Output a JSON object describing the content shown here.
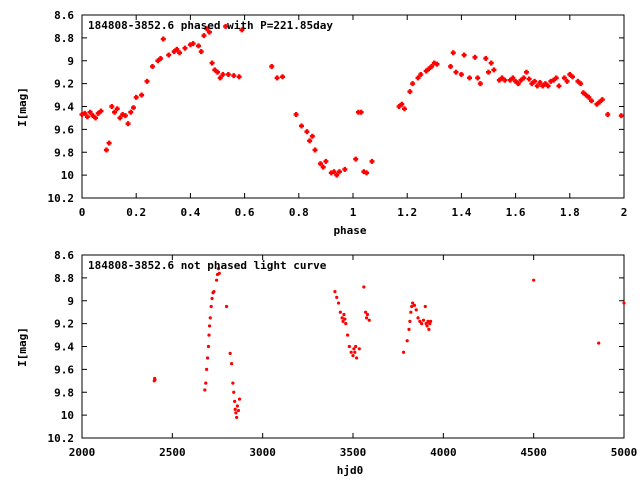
{
  "chart_data": [
    {
      "type": "scatter",
      "title": "184808-3852.6 phased with P=221.85day",
      "xlabel": "phase",
      "ylabel": "I[mag]",
      "xlim": [
        0,
        2
      ],
      "ylim": [
        10.2,
        8.6
      ],
      "y_inverted": true,
      "xticks": [
        "0",
        "0.2",
        "0.4",
        "0.6",
        "0.8",
        "1",
        "1.2",
        "1.4",
        "1.6",
        "1.8",
        "2"
      ],
      "yticks": [
        "8.6",
        "8.8",
        "9",
        "9.2",
        "9.4",
        "9.6",
        "9.8",
        "10",
        "10.2"
      ],
      "marker": "plus-cluster",
      "color": "#ff0000",
      "grid": false,
      "legend": "none",
      "series": [
        {
          "points": [
            [
              0.0,
              9.47
            ],
            [
              0.01,
              9.46
            ],
            [
              0.02,
              9.49
            ],
            [
              0.03,
              9.45
            ],
            [
              0.04,
              9.48
            ],
            [
              0.05,
              9.5
            ],
            [
              0.06,
              9.46
            ],
            [
              0.07,
              9.44
            ],
            [
              0.09,
              9.78
            ],
            [
              0.1,
              9.72
            ],
            [
              0.11,
              9.4
            ],
            [
              0.12,
              9.45
            ],
            [
              0.13,
              9.42
            ],
            [
              0.14,
              9.5
            ],
            [
              0.15,
              9.47
            ],
            [
              0.16,
              9.48
            ],
            [
              0.17,
              9.55
            ],
            [
              0.18,
              9.45
            ],
            [
              0.19,
              9.41
            ],
            [
              0.2,
              9.32
            ],
            [
              0.22,
              9.3
            ],
            [
              0.24,
              9.18
            ],
            [
              0.26,
              9.05
            ],
            [
              0.28,
              9.0
            ],
            [
              0.29,
              8.98
            ],
            [
              0.3,
              8.81
            ],
            [
              0.32,
              8.95
            ],
            [
              0.34,
              8.92
            ],
            [
              0.35,
              8.9
            ],
            [
              0.36,
              8.93
            ],
            [
              0.38,
              8.89
            ],
            [
              0.4,
              8.86
            ],
            [
              0.41,
              8.85
            ],
            [
              0.43,
              8.87
            ],
            [
              0.44,
              8.92
            ],
            [
              0.45,
              8.78
            ],
            [
              0.46,
              8.72
            ],
            [
              0.47,
              8.75
            ],
            [
              0.48,
              9.02
            ],
            [
              0.49,
              9.08
            ],
            [
              0.5,
              9.1
            ],
            [
              0.51,
              9.15
            ],
            [
              0.52,
              9.12
            ],
            [
              0.53,
              8.7
            ],
            [
              0.54,
              9.12
            ],
            [
              0.56,
              9.13
            ],
            [
              0.58,
              9.14
            ],
            [
              0.59,
              8.73
            ],
            [
              0.7,
              9.05
            ],
            [
              0.72,
              9.15
            ],
            [
              0.74,
              9.14
            ],
            [
              0.79,
              9.47
            ],
            [
              0.81,
              9.57
            ],
            [
              0.83,
              9.62
            ],
            [
              0.84,
              9.7
            ],
            [
              0.85,
              9.66
            ],
            [
              0.86,
              9.78
            ],
            [
              0.88,
              9.9
            ],
            [
              0.89,
              9.93
            ],
            [
              0.9,
              9.88
            ],
            [
              0.92,
              9.98
            ],
            [
              0.93,
              9.97
            ],
            [
              0.94,
              10.0
            ],
            [
              0.95,
              9.97
            ],
            [
              0.97,
              9.95
            ],
            [
              1.01,
              9.86
            ],
            [
              1.02,
              9.45
            ],
            [
              1.03,
              9.45
            ],
            [
              1.04,
              9.97
            ],
            [
              1.05,
              9.98
            ],
            [
              1.07,
              9.88
            ],
            [
              1.17,
              9.4
            ],
            [
              1.18,
              9.38
            ],
            [
              1.19,
              9.42
            ],
            [
              1.21,
              9.27
            ],
            [
              1.22,
              9.2
            ],
            [
              1.24,
              9.15
            ],
            [
              1.25,
              9.12
            ],
            [
              1.27,
              9.09
            ],
            [
              1.28,
              9.07
            ],
            [
              1.29,
              9.05
            ],
            [
              1.3,
              9.02
            ],
            [
              1.31,
              9.03
            ],
            [
              1.36,
              9.05
            ],
            [
              1.37,
              8.93
            ],
            [
              1.38,
              9.1
            ],
            [
              1.4,
              9.12
            ],
            [
              1.41,
              8.95
            ],
            [
              1.43,
              9.15
            ],
            [
              1.45,
              8.97
            ],
            [
              1.46,
              9.15
            ],
            [
              1.47,
              9.2
            ],
            [
              1.49,
              8.98
            ],
            [
              1.5,
              9.1
            ],
            [
              1.51,
              9.02
            ],
            [
              1.52,
              9.08
            ],
            [
              1.54,
              9.17
            ],
            [
              1.55,
              9.15
            ],
            [
              1.56,
              9.17
            ],
            [
              1.58,
              9.17
            ],
            [
              1.59,
              9.15
            ],
            [
              1.6,
              9.18
            ],
            [
              1.61,
              9.2
            ],
            [
              1.62,
              9.17
            ],
            [
              1.63,
              9.15
            ],
            [
              1.64,
              9.1
            ],
            [
              1.65,
              9.16
            ],
            [
              1.66,
              9.2
            ],
            [
              1.67,
              9.18
            ],
            [
              1.68,
              9.22
            ],
            [
              1.69,
              9.19
            ],
            [
              1.7,
              9.22
            ],
            [
              1.71,
              9.2
            ],
            [
              1.72,
              9.22
            ],
            [
              1.73,
              9.18
            ],
            [
              1.74,
              9.17
            ],
            [
              1.75,
              9.15
            ],
            [
              1.76,
              9.22
            ],
            [
              1.78,
              9.15
            ],
            [
              1.79,
              9.18
            ],
            [
              1.8,
              9.12
            ],
            [
              1.81,
              9.14
            ],
            [
              1.83,
              9.18
            ],
            [
              1.84,
              9.2
            ],
            [
              1.85,
              9.28
            ],
            [
              1.86,
              9.3
            ],
            [
              1.87,
              9.32
            ],
            [
              1.88,
              9.35
            ],
            [
              1.9,
              9.38
            ],
            [
              1.91,
              9.36
            ],
            [
              1.92,
              9.34
            ],
            [
              1.94,
              9.47
            ],
            [
              1.99,
              9.48
            ]
          ]
        }
      ]
    },
    {
      "type": "scatter",
      "title": "184808-3852.6 not phased light curve",
      "xlabel": "hjd0",
      "ylabel": "I[mag]",
      "xlim": [
        2000,
        5000
      ],
      "ylim": [
        10.2,
        8.6
      ],
      "y_inverted": true,
      "xticks": [
        "2000",
        "2500",
        "3000",
        "3500",
        "4000",
        "4500",
        "5000"
      ],
      "yticks": [
        "8.6",
        "8.8",
        "9",
        "9.2",
        "9.4",
        "9.6",
        "9.8",
        "10",
        "10.2"
      ],
      "marker": "small-dot",
      "color": "#ff0000",
      "grid": false,
      "legend": "none",
      "series": [
        {
          "points": [
            [
              2400,
              9.7
            ],
            [
              2402,
              9.68
            ],
            [
              2404,
              9.69
            ],
            [
              2680,
              9.78
            ],
            [
              2685,
              9.72
            ],
            [
              2690,
              9.6
            ],
            [
              2695,
              9.5
            ],
            [
              2700,
              9.4
            ],
            [
              2703,
              9.3
            ],
            [
              2706,
              9.22
            ],
            [
              2710,
              9.15
            ],
            [
              2715,
              9.05
            ],
            [
              2720,
              8.98
            ],
            [
              2725,
              8.93
            ],
            [
              2730,
              8.92
            ],
            [
              2745,
              8.82
            ],
            [
              2750,
              8.77
            ],
            [
              2755,
              8.72
            ],
            [
              2760,
              8.76
            ],
            [
              2800,
              9.05
            ],
            [
              2820,
              9.46
            ],
            [
              2828,
              9.55
            ],
            [
              2835,
              9.72
            ],
            [
              2840,
              9.8
            ],
            [
              2845,
              9.88
            ],
            [
              2848,
              9.95
            ],
            [
              2852,
              9.98
            ],
            [
              2856,
              10.02
            ],
            [
              2860,
              9.92
            ],
            [
              2866,
              9.96
            ],
            [
              2872,
              9.86
            ],
            [
              3400,
              8.92
            ],
            [
              3410,
              8.97
            ],
            [
              3420,
              9.02
            ],
            [
              3430,
              9.1
            ],
            [
              3440,
              9.15
            ],
            [
              3445,
              9.18
            ],
            [
              3450,
              9.12
            ],
            [
              3455,
              9.16
            ],
            [
              3460,
              9.2
            ],
            [
              3470,
              9.3
            ],
            [
              3480,
              9.4
            ],
            [
              3490,
              9.45
            ],
            [
              3500,
              9.48
            ],
            [
              3505,
              9.42
            ],
            [
              3510,
              9.45
            ],
            [
              3515,
              9.4
            ],
            [
              3520,
              9.5
            ],
            [
              3535,
              9.42
            ],
            [
              3560,
              8.88
            ],
            [
              3570,
              9.1
            ],
            [
              3575,
              9.15
            ],
            [
              3580,
              9.12
            ],
            [
              3590,
              9.17
            ],
            [
              3780,
              9.45
            ],
            [
              3800,
              9.35
            ],
            [
              3810,
              9.25
            ],
            [
              3815,
              9.18
            ],
            [
              3820,
              9.1
            ],
            [
              3825,
              9.05
            ],
            [
              3830,
              9.02
            ],
            [
              3840,
              9.04
            ],
            [
              3850,
              9.08
            ],
            [
              3860,
              9.15
            ],
            [
              3870,
              9.18
            ],
            [
              3880,
              9.2
            ],
            [
              3890,
              9.17
            ],
            [
              3900,
              9.05
            ],
            [
              3905,
              9.2
            ],
            [
              3910,
              9.22
            ],
            [
              3915,
              9.18
            ],
            [
              3920,
              9.25
            ],
            [
              3925,
              9.2
            ],
            [
              3930,
              9.18
            ],
            [
              4500,
              8.82
            ],
            [
              4860,
              9.37
            ],
            [
              5000,
              9.02
            ]
          ]
        }
      ]
    }
  ]
}
